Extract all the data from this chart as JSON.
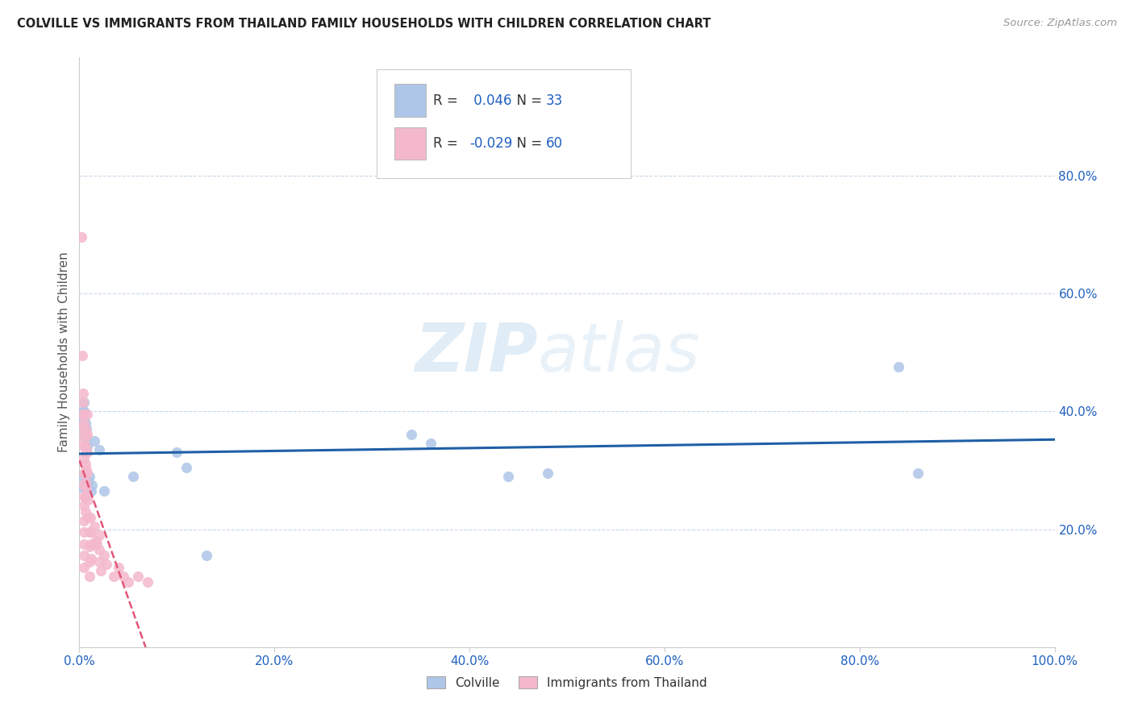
{
  "title": "COLVILLE VS IMMIGRANTS FROM THAILAND FAMILY HOUSEHOLDS WITH CHILDREN CORRELATION CHART",
  "source": "Source: ZipAtlas.com",
  "ylabel": "Family Households with Children",
  "colville_R": 0.046,
  "colville_N": 33,
  "thailand_R": -0.029,
  "thailand_N": 60,
  "colville_color": "#aec6e8",
  "thailand_color": "#f4b8cc",
  "colville_line_color": "#1f5fa6",
  "thailand_line_color": "#e05575",
  "watermark_color": "#d5e8f5",
  "colville_points": [
    [
      0.002,
      0.29
    ],
    [
      0.003,
      0.27
    ],
    [
      0.004,
      0.4
    ],
    [
      0.004,
      0.39
    ],
    [
      0.004,
      0.375
    ],
    [
      0.005,
      0.415
    ],
    [
      0.005,
      0.4
    ],
    [
      0.005,
      0.385
    ],
    [
      0.005,
      0.36
    ],
    [
      0.006,
      0.38
    ],
    [
      0.006,
      0.355
    ],
    [
      0.006,
      0.34
    ],
    [
      0.007,
      0.37
    ],
    [
      0.007,
      0.36
    ],
    [
      0.008,
      0.34
    ],
    [
      0.008,
      0.285
    ],
    [
      0.009,
      0.28
    ],
    [
      0.01,
      0.29
    ],
    [
      0.012,
      0.265
    ],
    [
      0.013,
      0.275
    ],
    [
      0.015,
      0.35
    ],
    [
      0.02,
      0.335
    ],
    [
      0.025,
      0.265
    ],
    [
      0.055,
      0.29
    ],
    [
      0.1,
      0.33
    ],
    [
      0.11,
      0.305
    ],
    [
      0.13,
      0.155
    ],
    [
      0.34,
      0.36
    ],
    [
      0.36,
      0.345
    ],
    [
      0.44,
      0.29
    ],
    [
      0.48,
      0.295
    ],
    [
      0.84,
      0.475
    ],
    [
      0.86,
      0.295
    ]
  ],
  "thailand_points": [
    [
      0.002,
      0.695
    ],
    [
      0.003,
      0.495
    ],
    [
      0.004,
      0.43
    ],
    [
      0.004,
      0.415
    ],
    [
      0.004,
      0.395
    ],
    [
      0.004,
      0.375
    ],
    [
      0.005,
      0.395
    ],
    [
      0.005,
      0.38
    ],
    [
      0.005,
      0.36
    ],
    [
      0.005,
      0.35
    ],
    [
      0.005,
      0.34
    ],
    [
      0.005,
      0.32
    ],
    [
      0.005,
      0.295
    ],
    [
      0.005,
      0.275
    ],
    [
      0.005,
      0.255
    ],
    [
      0.005,
      0.24
    ],
    [
      0.005,
      0.215
    ],
    [
      0.005,
      0.195
    ],
    [
      0.005,
      0.175
    ],
    [
      0.005,
      0.155
    ],
    [
      0.005,
      0.135
    ],
    [
      0.006,
      0.37
    ],
    [
      0.006,
      0.34
    ],
    [
      0.006,
      0.31
    ],
    [
      0.006,
      0.28
    ],
    [
      0.006,
      0.255
    ],
    [
      0.006,
      0.23
    ],
    [
      0.007,
      0.36
    ],
    [
      0.007,
      0.33
    ],
    [
      0.007,
      0.3
    ],
    [
      0.007,
      0.27
    ],
    [
      0.008,
      0.395
    ],
    [
      0.008,
      0.36
    ],
    [
      0.008,
      0.33
    ],
    [
      0.008,
      0.295
    ],
    [
      0.009,
      0.25
    ],
    [
      0.009,
      0.22
    ],
    [
      0.01,
      0.195
    ],
    [
      0.01,
      0.17
    ],
    [
      0.01,
      0.145
    ],
    [
      0.01,
      0.12
    ],
    [
      0.011,
      0.22
    ],
    [
      0.011,
      0.195
    ],
    [
      0.012,
      0.175
    ],
    [
      0.012,
      0.15
    ],
    [
      0.015,
      0.205
    ],
    [
      0.017,
      0.18
    ],
    [
      0.018,
      0.175
    ],
    [
      0.02,
      0.19
    ],
    [
      0.02,
      0.165
    ],
    [
      0.02,
      0.145
    ],
    [
      0.022,
      0.13
    ],
    [
      0.025,
      0.155
    ],
    [
      0.028,
      0.14
    ],
    [
      0.035,
      0.12
    ],
    [
      0.04,
      0.135
    ],
    [
      0.045,
      0.12
    ],
    [
      0.05,
      0.11
    ],
    [
      0.06,
      0.12
    ],
    [
      0.07,
      0.11
    ]
  ]
}
